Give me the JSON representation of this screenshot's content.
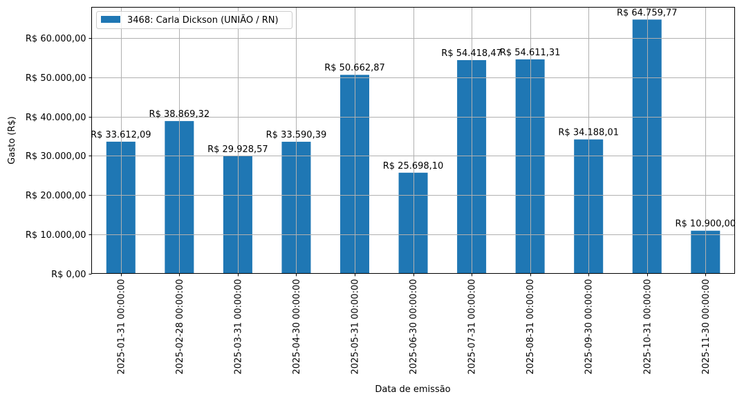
{
  "chart_data": {
    "type": "bar",
    "title": "",
    "xlabel": "Data de emissão",
    "ylabel": "Gasto (R$)",
    "ylim": [
      0,
      67900
    ],
    "grid": true,
    "legend": {
      "position": "upper left",
      "entries": [
        "3468: Carla Dickson (UNIÃO / RN)"
      ]
    },
    "series_color": "#1f77b4",
    "categories": [
      "2025-01-31 00:00:00",
      "2025-02-28 00:00:00",
      "2025-03-31 00:00:00",
      "2025-04-30 00:00:00",
      "2025-05-31 00:00:00",
      "2025-06-30 00:00:00",
      "2025-07-31 00:00:00",
      "2025-08-31 00:00:00",
      "2025-09-30 00:00:00",
      "2025-10-31 00:00:00",
      "2025-11-30 00:00:00"
    ],
    "series": [
      {
        "name": "3468: Carla Dickson (UNIÃO / RN)",
        "values": [
          33612.09,
          38869.32,
          29928.57,
          33590.39,
          50662.87,
          25698.1,
          54418.47,
          54611.31,
          34188.01,
          64759.77,
          10900.0
        ]
      }
    ],
    "data_labels": [
      "R$ 33.612,09",
      "R$ 38.869,32",
      "R$ 29.928,57",
      "R$ 33.590,39",
      "R$ 50.662,87",
      "R$ 25.698,10",
      "R$ 54.418,47",
      "R$ 54.611,31",
      "R$ 34.188,01",
      "R$ 64.759,77",
      "R$ 10.900,00"
    ],
    "yticks": [
      0,
      10000,
      20000,
      30000,
      40000,
      50000,
      60000
    ],
    "ytick_labels": [
      "R$ 0,00",
      "R$ 10.000,00",
      "R$ 20.000,00",
      "R$ 30.000,00",
      "R$ 40.000,00",
      "R$ 50.000,00",
      "R$ 60.000,00"
    ]
  }
}
